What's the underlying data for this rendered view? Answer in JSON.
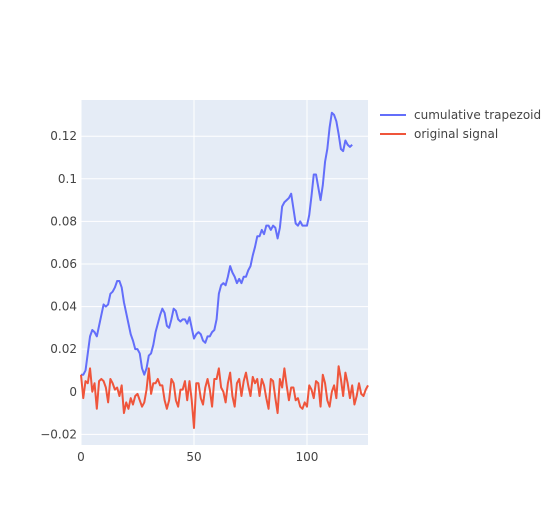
{
  "chart_data": {
    "type": "line",
    "xlim": [
      0,
      127
    ],
    "ylim": [
      -0.025,
      0.137
    ],
    "x_ticks": [
      0,
      50,
      100
    ],
    "y_ticks": [
      -0.02,
      0,
      0.02,
      0.04,
      0.06,
      0.08,
      0.1,
      0.12
    ],
    "x_tick_labels": [
      "0",
      "50",
      "100"
    ],
    "y_tick_labels": [
      "−0.02",
      "0",
      "0.02",
      "0.04",
      "0.06",
      "0.08",
      "0.1",
      "0.12"
    ],
    "grid": true,
    "plot_background": "#e5ecf6",
    "legend_position": "top-right",
    "series": [
      {
        "name": "cumulative trapezoid",
        "color": "#636efa",
        "points": [
          [
            0,
            0.008
          ],
          [
            1,
            0.008
          ],
          [
            2,
            0.01
          ],
          [
            3,
            0.018
          ],
          [
            4,
            0.026
          ],
          [
            5,
            0.029
          ],
          [
            6,
            0.028
          ],
          [
            7,
            0.026
          ],
          [
            8,
            0.031
          ],
          [
            9,
            0.036
          ],
          [
            10,
            0.041
          ],
          [
            11,
            0.04
          ],
          [
            12,
            0.041
          ],
          [
            13,
            0.046
          ],
          [
            14,
            0.047
          ],
          [
            15,
            0.049
          ],
          [
            16,
            0.052
          ],
          [
            17,
            0.052
          ],
          [
            18,
            0.049
          ],
          [
            19,
            0.042
          ],
          [
            20,
            0.037
          ],
          [
            21,
            0.032
          ],
          [
            22,
            0.027
          ],
          [
            23,
            0.024
          ],
          [
            24,
            0.02
          ],
          [
            25,
            0.02
          ],
          [
            26,
            0.018
          ],
          [
            27,
            0.011
          ],
          [
            28,
            0.008
          ],
          [
            29,
            0.011
          ],
          [
            30,
            0.017
          ],
          [
            31,
            0.018
          ],
          [
            32,
            0.022
          ],
          [
            33,
            0.028
          ],
          [
            34,
            0.032
          ],
          [
            35,
            0.036
          ],
          [
            36,
            0.039
          ],
          [
            37,
            0.037
          ],
          [
            38,
            0.031
          ],
          [
            39,
            0.03
          ],
          [
            40,
            0.034
          ],
          [
            41,
            0.039
          ],
          [
            42,
            0.038
          ],
          [
            43,
            0.034
          ],
          [
            44,
            0.033
          ],
          [
            45,
            0.034
          ],
          [
            46,
            0.034
          ],
          [
            47,
            0.032
          ],
          [
            48,
            0.035
          ],
          [
            49,
            0.03
          ],
          [
            50,
            0.025
          ],
          [
            51,
            0.027
          ],
          [
            52,
            0.028
          ],
          [
            53,
            0.027
          ],
          [
            54,
            0.024
          ],
          [
            55,
            0.023
          ],
          [
            56,
            0.026
          ],
          [
            57,
            0.026
          ],
          [
            58,
            0.028
          ],
          [
            59,
            0.029
          ],
          [
            60,
            0.034
          ],
          [
            61,
            0.046
          ],
          [
            62,
            0.05
          ],
          [
            63,
            0.051
          ],
          [
            64,
            0.05
          ],
          [
            65,
            0.054
          ],
          [
            66,
            0.059
          ],
          [
            67,
            0.056
          ],
          [
            68,
            0.054
          ],
          [
            69,
            0.051
          ],
          [
            70,
            0.053
          ],
          [
            71,
            0.051
          ],
          [
            72,
            0.054
          ],
          [
            73,
            0.054
          ],
          [
            74,
            0.057
          ],
          [
            75,
            0.059
          ],
          [
            76,
            0.064
          ],
          [
            77,
            0.068
          ],
          [
            78,
            0.073
          ],
          [
            79,
            0.073
          ],
          [
            80,
            0.076
          ],
          [
            81,
            0.074
          ],
          [
            82,
            0.078
          ],
          [
            83,
            0.078
          ],
          [
            84,
            0.076
          ],
          [
            85,
            0.078
          ],
          [
            86,
            0.077
          ],
          [
            87,
            0.072
          ],
          [
            88,
            0.077
          ],
          [
            89,
            0.087
          ],
          [
            90,
            0.089
          ],
          [
            91,
            0.09
          ],
          [
            92,
            0.091
          ],
          [
            93,
            0.093
          ],
          [
            94,
            0.086
          ],
          [
            95,
            0.079
          ],
          [
            96,
            0.078
          ],
          [
            97,
            0.08
          ],
          [
            98,
            0.078
          ],
          [
            99,
            0.078
          ],
          [
            100,
            0.078
          ],
          [
            101,
            0.083
          ],
          [
            102,
            0.092
          ],
          [
            103,
            0.102
          ],
          [
            104,
            0.102
          ],
          [
            105,
            0.096
          ],
          [
            106,
            0.09
          ],
          [
            107,
            0.097
          ],
          [
            108,
            0.108
          ],
          [
            109,
            0.114
          ],
          [
            110,
            0.124
          ],
          [
            111,
            0.131
          ],
          [
            112,
            0.13
          ],
          [
            113,
            0.127
          ],
          [
            114,
            0.121
          ],
          [
            115,
            0.114
          ],
          [
            116,
            0.113
          ],
          [
            117,
            0.118
          ],
          [
            118,
            0.116
          ],
          [
            119,
            0.115
          ],
          [
            120,
            0.116
          ]
        ]
      },
      {
        "name": "original signal",
        "color": "#ef553b",
        "points": [
          [
            0,
            0.008
          ],
          [
            1,
            -0.003
          ],
          [
            2,
            0.005
          ],
          [
            3,
            0.004
          ],
          [
            4,
            0.011
          ],
          [
            5,
            0
          ],
          [
            6,
            0.004
          ],
          [
            7,
            -0.008
          ],
          [
            8,
            0.005
          ],
          [
            9,
            0.006
          ],
          [
            10,
            0.005
          ],
          [
            11,
            0.002
          ],
          [
            12,
            -0.005
          ],
          [
            13,
            0.006
          ],
          [
            14,
            0.004
          ],
          [
            15,
            0.001
          ],
          [
            16,
            0.002
          ],
          [
            17,
            -0.002
          ],
          [
            18,
            0.003
          ],
          [
            19,
            -0.01
          ],
          [
            20,
            -0.005
          ],
          [
            21,
            -0.008
          ],
          [
            22,
            -0.003
          ],
          [
            23,
            -0.006
          ],
          [
            24,
            -0.002
          ],
          [
            25,
            -0.001
          ],
          [
            26,
            -0.004
          ],
          [
            27,
            -0.007
          ],
          [
            28,
            -0.005
          ],
          [
            29,
            0.001
          ],
          [
            30,
            0.011
          ],
          [
            31,
            -0.001
          ],
          [
            32,
            0.004
          ],
          [
            33,
            0.004
          ],
          [
            34,
            0.006
          ],
          [
            35,
            0.003
          ],
          [
            36,
            0.003
          ],
          [
            37,
            -0.004
          ],
          [
            38,
            -0.008
          ],
          [
            39,
            -0.004
          ],
          [
            40,
            0.006
          ],
          [
            41,
            0.004
          ],
          [
            42,
            -0.004
          ],
          [
            43,
            -0.007
          ],
          [
            44,
            0.001
          ],
          [
            45,
            0.001
          ],
          [
            46,
            0.005
          ],
          [
            47,
            -0.004
          ],
          [
            48,
            0.005
          ],
          [
            49,
            -0.004
          ],
          [
            50,
            -0.017
          ],
          [
            51,
            0.004
          ],
          [
            52,
            0.004
          ],
          [
            53,
            -0.003
          ],
          [
            54,
            -0.006
          ],
          [
            55,
            0.002
          ],
          [
            56,
            0.006
          ],
          [
            57,
            0.001
          ],
          [
            58,
            -0.007
          ],
          [
            59,
            0.006
          ],
          [
            60,
            0.006
          ],
          [
            61,
            0.011
          ],
          [
            62,
            0.002
          ],
          [
            63,
            0
          ],
          [
            64,
            -0.005
          ],
          [
            65,
            0.004
          ],
          [
            66,
            0.009
          ],
          [
            67,
            -0.002
          ],
          [
            68,
            -0.007
          ],
          [
            69,
            0.004
          ],
          [
            70,
            0.006
          ],
          [
            71,
            -0.002
          ],
          [
            72,
            0.005
          ],
          [
            73,
            0.009
          ],
          [
            74,
            0.003
          ],
          [
            75,
            -0.002
          ],
          [
            76,
            0.007
          ],
          [
            77,
            0.004
          ],
          [
            78,
            0.006
          ],
          [
            79,
            -0.002
          ],
          [
            80,
            0.006
          ],
          [
            81,
            0.003
          ],
          [
            82,
            -0.003
          ],
          [
            83,
            -0.008
          ],
          [
            84,
            0.006
          ],
          [
            85,
            0.005
          ],
          [
            86,
            -0.003
          ],
          [
            87,
            -0.01
          ],
          [
            88,
            0.006
          ],
          [
            89,
            0.002
          ],
          [
            90,
            0.011
          ],
          [
            91,
            0.003
          ],
          [
            92,
            -0.004
          ],
          [
            93,
            0.002
          ],
          [
            94,
            0.002
          ],
          [
            95,
            -0.004
          ],
          [
            96,
            -0.003
          ],
          [
            97,
            -0.007
          ],
          [
            98,
            -0.008
          ],
          [
            99,
            -0.005
          ],
          [
            100,
            -0.007
          ],
          [
            101,
            0.003
          ],
          [
            102,
            0.001
          ],
          [
            103,
            -0.003
          ],
          [
            104,
            0.005
          ],
          [
            105,
            0.004
          ],
          [
            106,
            -0.007
          ],
          [
            107,
            0.008
          ],
          [
            108,
            0.004
          ],
          [
            109,
            -0.004
          ],
          [
            110,
            -0.007
          ],
          [
            111,
            0
          ],
          [
            112,
            0.003
          ],
          [
            113,
            -0.003
          ],
          [
            114,
            0.012
          ],
          [
            115,
            0.006
          ],
          [
            116,
            -0.002
          ],
          [
            117,
            0.009
          ],
          [
            118,
            0.004
          ],
          [
            119,
            -0.003
          ],
          [
            120,
            0.003
          ],
          [
            121,
            -0.006
          ],
          [
            122,
            -0.002
          ],
          [
            123,
            0.004
          ],
          [
            124,
            -0.001
          ],
          [
            125,
            -0.002
          ],
          [
            126,
            0.001
          ],
          [
            127,
            0.003
          ]
        ]
      }
    ]
  }
}
